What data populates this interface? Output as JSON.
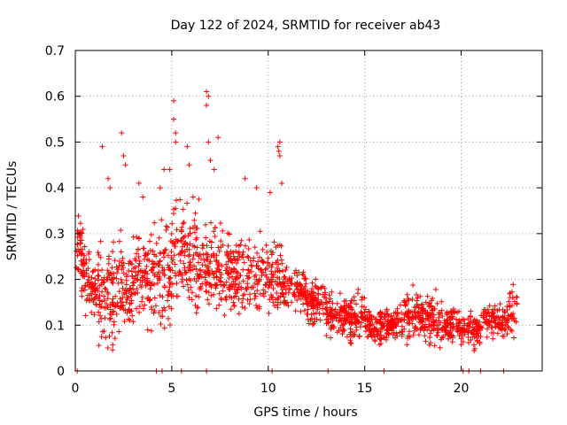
{
  "chart_data": {
    "type": "scatter",
    "title": "Day 122 of 2024, SRMTID for receiver ab43",
    "xlabel": "GPS time / hours",
    "ylabel": "SRMTID / TECUs",
    "xlim": [
      0,
      24.2
    ],
    "ylim": [
      0,
      0.7
    ],
    "xticks": [
      0,
      5,
      10,
      15,
      20
    ],
    "xtick_labels": [
      "0",
      "5",
      "10",
      "15",
      "20"
    ],
    "yticks": [
      0,
      0.1,
      0.2,
      0.3,
      0.4,
      0.5,
      0.6,
      0.7
    ],
    "ytick_labels": [
      "0",
      "0.1",
      "0.2",
      "0.3",
      "0.4",
      "0.5",
      "0.6",
      "0.7"
    ],
    "grid": true,
    "legend": "none",
    "marker": "+",
    "series": [
      {
        "name": "SRMTID",
        "color": "#ff0000",
        "segments": [
          {
            "x": [
              0.0,
              0.5
            ],
            "mean": 0.27,
            "spread": 0.05,
            "count": 40
          },
          {
            "x": [
              0.3,
              1.2
            ],
            "mean": 0.19,
            "spread": 0.05,
            "count": 80
          },
          {
            "x": [
              1.2,
              2.0
            ],
            "mean": 0.17,
            "spread": 0.09,
            "count": 80
          },
          {
            "x": [
              2.0,
              3.0
            ],
            "mean": 0.18,
            "spread": 0.08,
            "count": 90
          },
          {
            "x": [
              3.0,
              4.0
            ],
            "mean": 0.21,
            "spread": 0.08,
            "count": 90
          },
          {
            "x": [
              4.0,
              5.0
            ],
            "mean": 0.21,
            "spread": 0.09,
            "count": 90
          },
          {
            "x": [
              5.0,
              6.0
            ],
            "mean": 0.24,
            "spread": 0.09,
            "count": 90
          },
          {
            "x": [
              6.0,
              7.0
            ],
            "mean": 0.24,
            "spread": 0.09,
            "count": 90
          },
          {
            "x": [
              7.0,
              8.0
            ],
            "mean": 0.22,
            "spread": 0.07,
            "count": 90
          },
          {
            "x": [
              8.0,
              9.0
            ],
            "mean": 0.21,
            "spread": 0.06,
            "count": 90
          },
          {
            "x": [
              9.0,
              10.7
            ],
            "mean": 0.21,
            "spread": 0.07,
            "count": 130
          },
          {
            "x": [
              10.7,
              12.0
            ],
            "mean": 0.18,
            "spread": 0.04,
            "count": 100
          },
          {
            "x": [
              12.0,
              13.0
            ],
            "mean": 0.15,
            "spread": 0.04,
            "count": 90
          },
          {
            "x": [
              13.0,
              14.0
            ],
            "mean": 0.12,
            "spread": 0.03,
            "count": 90
          },
          {
            "x": [
              14.0,
              15.0
            ],
            "mean": 0.12,
            "spread": 0.04,
            "count": 90
          },
          {
            "x": [
              15.0,
              16.0
            ],
            "mean": 0.1,
            "spread": 0.03,
            "count": 90
          },
          {
            "x": [
              16.0,
              17.0
            ],
            "mean": 0.1,
            "spread": 0.03,
            "count": 90
          },
          {
            "x": [
              17.0,
              18.0
            ],
            "mean": 0.12,
            "spread": 0.04,
            "count": 90
          },
          {
            "x": [
              18.0,
              19.0
            ],
            "mean": 0.11,
            "spread": 0.04,
            "count": 90
          },
          {
            "x": [
              19.0,
              20.0
            ],
            "mean": 0.1,
            "spread": 0.03,
            "count": 90
          },
          {
            "x": [
              20.0,
              21.0
            ],
            "mean": 0.09,
            "spread": 0.03,
            "count": 80
          },
          {
            "x": [
              21.0,
              22.5
            ],
            "mean": 0.11,
            "spread": 0.03,
            "count": 110
          },
          {
            "x": [
              22.5,
              22.9
            ],
            "mean": 0.14,
            "spread": 0.05,
            "count": 30
          }
        ],
        "outliers": [
          {
            "x": 1.4,
            "y": 0.49
          },
          {
            "x": 1.7,
            "y": 0.42
          },
          {
            "x": 1.8,
            "y": 0.4
          },
          {
            "x": 2.4,
            "y": 0.52
          },
          {
            "x": 2.5,
            "y": 0.47
          },
          {
            "x": 2.6,
            "y": 0.45
          },
          {
            "x": 3.3,
            "y": 0.41
          },
          {
            "x": 3.5,
            "y": 0.38
          },
          {
            "x": 4.4,
            "y": 0.4
          },
          {
            "x": 4.6,
            "y": 0.44
          },
          {
            "x": 4.9,
            "y": 0.44
          },
          {
            "x": 5.1,
            "y": 0.59
          },
          {
            "x": 5.1,
            "y": 0.55
          },
          {
            "x": 5.2,
            "y": 0.52
          },
          {
            "x": 5.2,
            "y": 0.5
          },
          {
            "x": 5.8,
            "y": 0.49
          },
          {
            "x": 5.9,
            "y": 0.45
          },
          {
            "x": 6.1,
            "y": 0.38
          },
          {
            "x": 6.8,
            "y": 0.61
          },
          {
            "x": 6.8,
            "y": 0.58
          },
          {
            "x": 6.9,
            "y": 0.6
          },
          {
            "x": 6.9,
            "y": 0.5
          },
          {
            "x": 7.0,
            "y": 0.46
          },
          {
            "x": 7.2,
            "y": 0.44
          },
          {
            "x": 7.4,
            "y": 0.51
          },
          {
            "x": 8.8,
            "y": 0.42
          },
          {
            "x": 9.4,
            "y": 0.4
          },
          {
            "x": 10.1,
            "y": 0.39
          },
          {
            "x": 10.5,
            "y": 0.49
          },
          {
            "x": 10.55,
            "y": 0.48
          },
          {
            "x": 10.6,
            "y": 0.5
          },
          {
            "x": 10.6,
            "y": 0.47
          },
          {
            "x": 10.7,
            "y": 0.41
          },
          {
            "x": 0.1,
            "y": 0.0
          },
          {
            "x": 4.2,
            "y": 0.0
          },
          {
            "x": 4.5,
            "y": 0.0
          },
          {
            "x": 5.5,
            "y": 0.0
          },
          {
            "x": 6.8,
            "y": 0.0
          },
          {
            "x": 10.2,
            "y": 0.0
          },
          {
            "x": 13.1,
            "y": 0.0
          },
          {
            "x": 16.0,
            "y": 0.0
          },
          {
            "x": 20.1,
            "y": 0.0
          },
          {
            "x": 20.4,
            "y": 0.0
          },
          {
            "x": 21.0,
            "y": 0.0
          },
          {
            "x": 22.2,
            "y": 0.0
          }
        ]
      }
    ]
  }
}
